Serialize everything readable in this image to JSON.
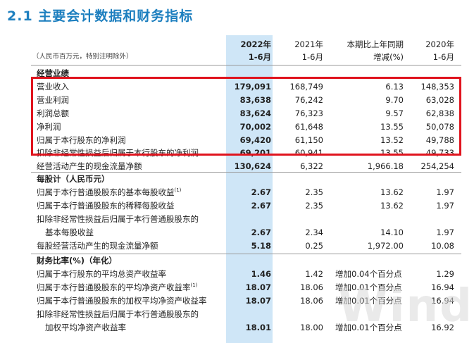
{
  "title": "2.1 主要会计数据和财务指标",
  "header": {
    "unit_note": "（人民币百万元，特别注明除外）",
    "col1_line1": "2022年",
    "col1_line2": "1-6月",
    "col2_line1": "2021年",
    "col2_line2": "1-6月",
    "col3_line1": "本期比上年同期",
    "col3_line2": "增减(%)",
    "col4_line1": "2020年",
    "col4_line2": "1-6月"
  },
  "sections": {
    "operating": "经营业绩",
    "per_share": "每股计（人民币元）",
    "ratios": "财务比率(%)（年化）"
  },
  "operating_rows": [
    {
      "label": "营业收入",
      "v2022": "179,091",
      "v2021": "168,749",
      "chg": "6.13",
      "v2020": "148,353"
    },
    {
      "label": "营业利润",
      "v2022": "83,638",
      "v2021": "76,242",
      "chg": "9.70",
      "v2020": "63,028"
    },
    {
      "label": "利润总额",
      "v2022": "83,624",
      "v2021": "76,323",
      "chg": "9.57",
      "v2020": "62,838"
    },
    {
      "label": "净利润",
      "v2022": "70,002",
      "v2021": "61,648",
      "chg": "13.55",
      "v2020": "50,078"
    },
    {
      "label": "归属于本行股东的净利润",
      "v2022": "69,420",
      "v2021": "61,150",
      "chg": "13.52",
      "v2020": "49,788"
    },
    {
      "label": "扣除非经常性损益后归属于本行股东的净利润",
      "v2022": "69,201",
      "v2021": "60,941",
      "chg": "13.55",
      "v2020": "49,733"
    },
    {
      "label": "经营活动产生的现金流量净额",
      "v2022": "130,624",
      "v2021": "6,322",
      "chg": "1,966.18",
      "v2020": "254,254"
    }
  ],
  "per_share_rows": [
    {
      "label": "归属于本行普通股股东的基本每股收益",
      "sup": "(1)",
      "v2022": "2.67",
      "v2021": "2.35",
      "chg": "13.62",
      "v2020": "1.97"
    },
    {
      "label": "归属于本行普通股股东的稀释每股收益",
      "v2022": "2.67",
      "v2021": "2.35",
      "chg": "13.62",
      "v2020": "1.97"
    },
    {
      "label": "扣除非经常性损益后归属于本行普通股股东的"
    },
    {
      "label": "基本每股收益",
      "v2022": "2.67",
      "v2021": "2.34",
      "chg": "14.10",
      "v2020": "1.97"
    },
    {
      "label": "每股经营活动产生的现金流量净额",
      "v2022": "5.18",
      "v2021": "0.25",
      "chg": "1,972.00",
      "v2020": "10.08"
    }
  ],
  "ratio_rows": [
    {
      "label": "归属于本行股东的平均总资产收益率",
      "v2022": "1.46",
      "v2021": "1.42",
      "chg": "增加0.04个百分点",
      "v2020": "1.29"
    },
    {
      "label": "归属于本行普通股股东的平均净资产收益率",
      "sup": "(1)",
      "v2022": "18.07",
      "v2021": "18.06",
      "chg": "增加0.01个百分点",
      "v2020": "16.94"
    },
    {
      "label": "归属于本行普通股股东的加权平均净资产收益率",
      "v2022": "18.07",
      "v2021": "18.06",
      "chg": "增加0.01个百分点",
      "v2020": "16.94"
    },
    {
      "label": "扣除非经常性损益后归属于本行普通股股东的"
    },
    {
      "label": "加权平均净资产收益率",
      "v2022": "18.01",
      "v2021": "18.00",
      "chg": "增加0.01个百分点",
      "v2020": "16.92"
    }
  ],
  "watermark": "Wind",
  "colors": {
    "title": "#1d7fbf",
    "highlight_column": "#cfe6f7",
    "highlight_box": "#e0141e"
  }
}
